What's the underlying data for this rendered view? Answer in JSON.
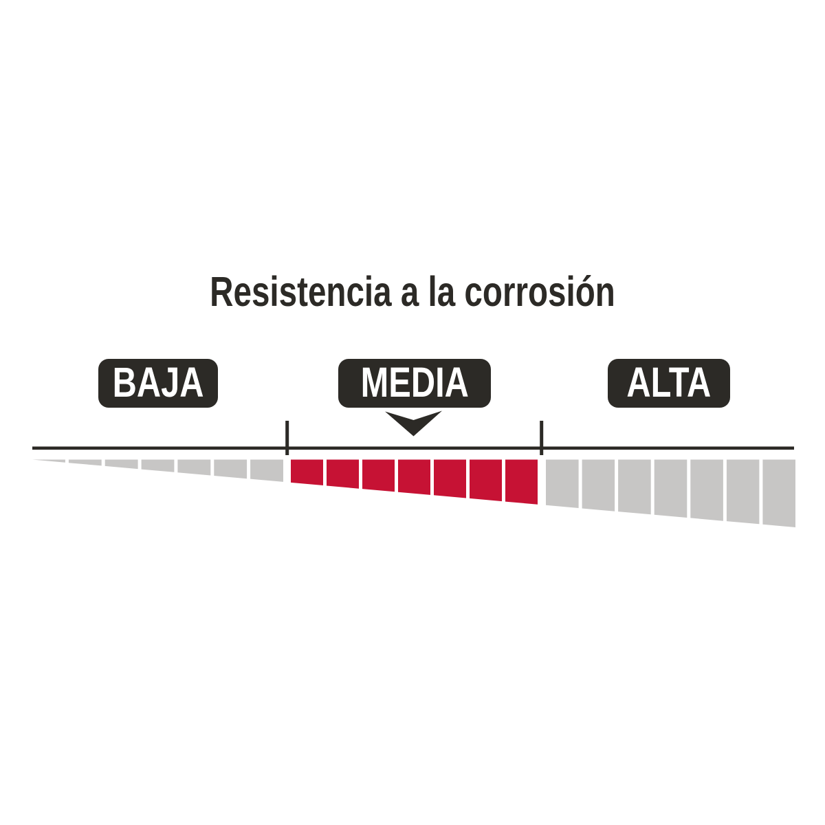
{
  "title": "Resistencia a la corrosión",
  "colors": {
    "dark": "#2c2a26",
    "red": "#c61234",
    "gray": "#c7c6c5",
    "label_text": "#ffffff",
    "background": "#ffffff"
  },
  "levels": [
    {
      "label": "BAJA",
      "selected": false
    },
    {
      "label": "MEDIA",
      "selected": true
    },
    {
      "label": "ALTA",
      "selected": false
    }
  ],
  "chart_data": {
    "type": "gauge",
    "title": "Resistencia a la corrosión",
    "orientation": "horizontal",
    "categories": [
      "BAJA",
      "MEDIA",
      "ALTA"
    ],
    "selected_category": "MEDIA",
    "selected_index": 1,
    "segments_per_category": 7,
    "total_segments": 21,
    "active_segment_range": [
      7,
      13
    ],
    "active_color": "#c61234",
    "inactive_color": "#c7c6c5",
    "axis_line_color": "#2c2a26",
    "style": "segmented wedge, thin point at left growing taller toward the right; middle third highlighted red; arrow marker points down at MEDIA",
    "tick_count": 2,
    "legend": "none",
    "grid": false
  }
}
